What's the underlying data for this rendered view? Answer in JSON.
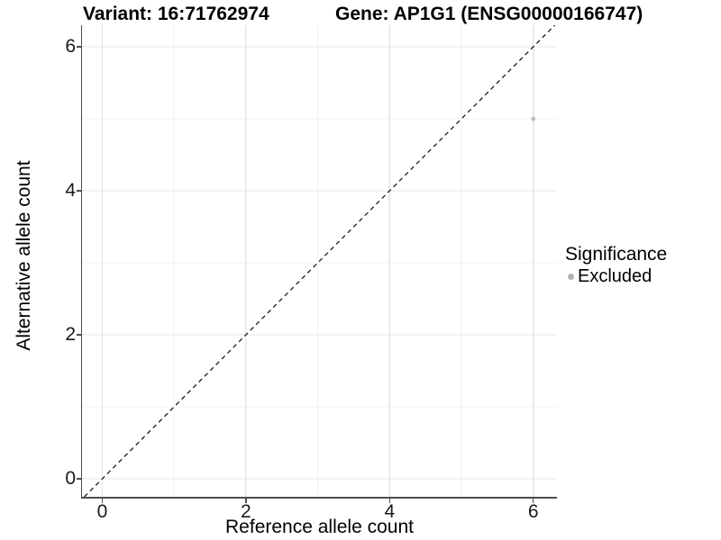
{
  "titles": {
    "variant": "Variant: 16:71762974",
    "gene": "Gene: AP1G1 (ENSG00000166747)"
  },
  "axes": {
    "x": {
      "label": "Reference allele count",
      "ticks": [
        "0",
        "2",
        "4",
        "6"
      ],
      "tick_values": [
        0,
        2,
        4,
        6
      ],
      "minor_values": [
        1,
        3,
        5
      ]
    },
    "y": {
      "label": "Alternative allele count",
      "ticks": [
        "0",
        "2",
        "4",
        "6"
      ],
      "tick_values": [
        0,
        2,
        4,
        6
      ],
      "minor_values": [
        1,
        3,
        5
      ]
    }
  },
  "legend": {
    "title": "Significance",
    "items": [
      {
        "label": "Excluded",
        "color": "#b3b3b3"
      }
    ]
  },
  "chart_data": {
    "type": "scatter",
    "title": "Variant: 16:71762974 | Gene: AP1G1 (ENSG00000166747)",
    "xlabel": "Reference allele count",
    "ylabel": "Alternative allele count",
    "xlim": [
      -0.3,
      6.3
    ],
    "ylim": [
      -0.3,
      6.3
    ],
    "grid": "on",
    "legend_position": "right",
    "series": [
      {
        "name": "Excluded",
        "color": "#bcbcbc",
        "point_radius": 2.4,
        "points": [
          {
            "x": 6,
            "y": 5
          }
        ]
      }
    ],
    "reference_line": {
      "type": "identity",
      "slope": 1,
      "intercept": 0,
      "style": "dashed",
      "color": "#1a1a1a"
    }
  },
  "colors": {
    "background": "#ffffff",
    "axis_line": "#4d4d4d",
    "tick_mark": "#4d4d4d",
    "tick_text": "#1a1a1a",
    "grid_major": "#e4e4e4",
    "grid_minor": "#f1f1f1",
    "point": "#bcbcbc",
    "reference_line": "#1a1a1a"
  }
}
